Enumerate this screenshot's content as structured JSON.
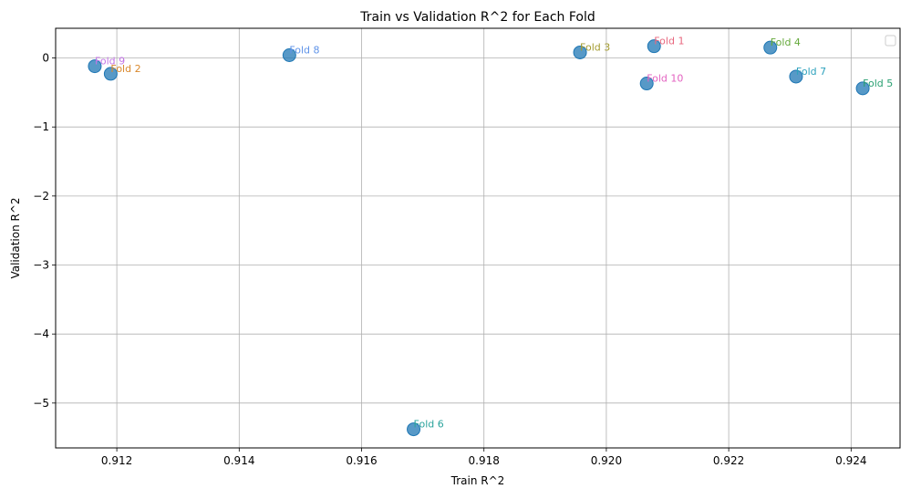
{
  "chart_data": {
    "type": "scatter",
    "title": "Train vs Validation R^2 for Each Fold",
    "xlabel": "Train R^2",
    "ylabel": "Validation R^2",
    "xlim": [
      0.911,
      0.9248
    ],
    "ylim": [
      -5.65,
      0.43
    ],
    "grid": true,
    "legend": "top-right (empty)",
    "point_color": "#1f77b4",
    "x_ticks": [
      {
        "value": 0.912,
        "label": "0.912"
      },
      {
        "value": 0.914,
        "label": "0.914"
      },
      {
        "value": 0.916,
        "label": "0.916"
      },
      {
        "value": 0.918,
        "label": "0.918"
      },
      {
        "value": 0.92,
        "label": "0.920"
      },
      {
        "value": 0.922,
        "label": "0.922"
      },
      {
        "value": 0.924,
        "label": "0.924"
      }
    ],
    "y_ticks": [
      {
        "value": 0,
        "label": "0"
      },
      {
        "value": -1,
        "label": "−1"
      },
      {
        "value": -2,
        "label": "−2"
      },
      {
        "value": -3,
        "label": "−3"
      },
      {
        "value": -4,
        "label": "−4"
      },
      {
        "value": -5,
        "label": "−5"
      }
    ],
    "points": [
      {
        "label": "Fold 1",
        "x": 0.92078,
        "y": 0.17,
        "color": "#e8677e"
      },
      {
        "label": "Fold 2",
        "x": 0.9119,
        "y": -0.23,
        "color": "#d9882c"
      },
      {
        "label": "Fold 3",
        "x": 0.91957,
        "y": 0.08,
        "color": "#a39a2e"
      },
      {
        "label": "Fold 4",
        "x": 0.92268,
        "y": 0.15,
        "color": "#64a93a"
      },
      {
        "label": "Fold 5",
        "x": 0.92419,
        "y": -0.44,
        "color": "#2aa072"
      },
      {
        "label": "Fold 6",
        "x": 0.91685,
        "y": -5.38,
        "color": "#2aa39c"
      },
      {
        "label": "Fold 7",
        "x": 0.9231,
        "y": -0.27,
        "color": "#2ea2bd"
      },
      {
        "label": "Fold 8",
        "x": 0.91482,
        "y": 0.04,
        "color": "#5f93e8"
      },
      {
        "label": "Fold 9",
        "x": 0.91164,
        "y": -0.12,
        "color": "#c374e6"
      },
      {
        "label": "Fold 10",
        "x": 0.92066,
        "y": -0.37,
        "color": "#e362c1"
      }
    ]
  }
}
